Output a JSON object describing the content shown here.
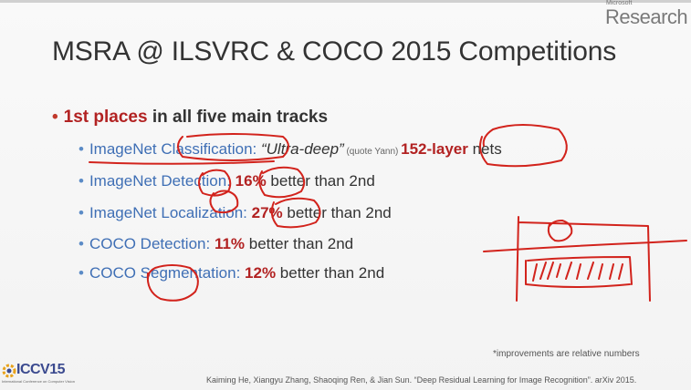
{
  "branding": {
    "microsoft_label": "Microsoft",
    "research_label": "Research",
    "conference_logo": "ICCV15",
    "conference_subtitle": "International Conference on Computer Vision"
  },
  "slide": {
    "title": "MSRA @ ILSVRC & COCO 2015 Competitions",
    "main_bullet": {
      "red_text": "1st places",
      "rest_text": " in all five main tracks"
    },
    "items": [
      {
        "track": "ImageNet Classification",
        "sep": ": ",
        "quote": "“Ultra-deep”",
        "note": " (quote Yann) ",
        "highlight": "152-layer",
        "tail": " nets"
      },
      {
        "track": "ImageNet Detection",
        "sep": ": ",
        "value": "16%",
        "tail": " better than 2nd"
      },
      {
        "track": "ImageNet Localization",
        "sep": ": ",
        "value": "27%",
        "tail": " better than 2nd"
      },
      {
        "track": "COCO Detection",
        "sep": ": ",
        "value": "11%",
        "tail": " better than 2nd"
      },
      {
        "track": "COCO Segmentation",
        "sep": ": ",
        "value": "12%",
        "tail": " better than 2nd"
      }
    ],
    "footnote": "*improvements are relative numbers",
    "citation": "Kaiming He, Xiangyu Zhang, Shaoqing Ren, & Jian Sun. “Deep Residual Learning for Image Recognition”. arXiv 2015."
  },
  "colors": {
    "accent_red": "#b22222",
    "track_blue": "#3f6fb5",
    "ink_red": "#d2231c"
  }
}
